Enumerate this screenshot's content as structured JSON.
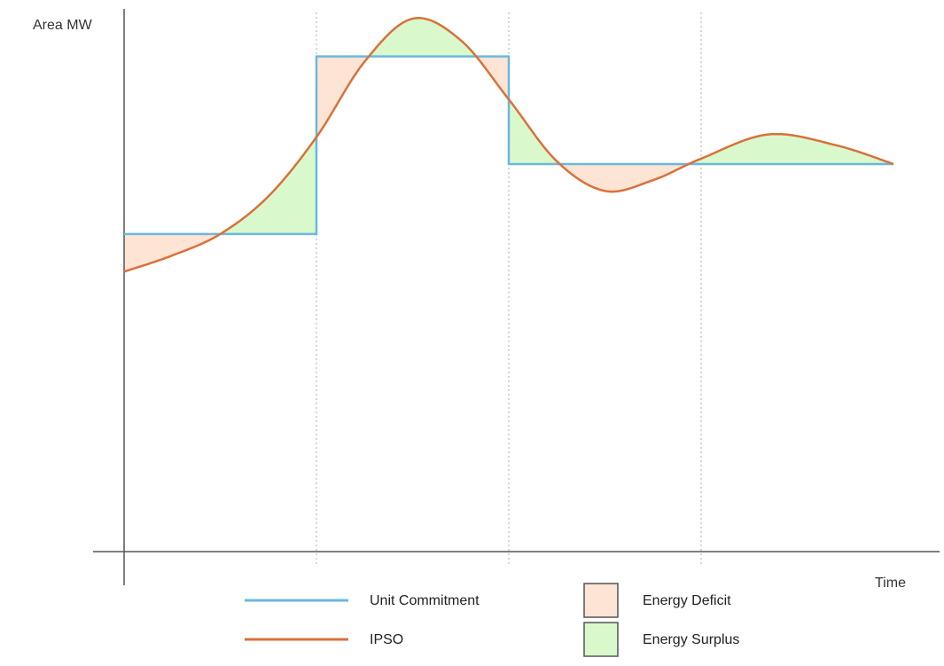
{
  "chart_data": {
    "type": "line",
    "ylabel": "Area MW",
    "xlabel": "Time",
    "xlim": [
      0,
      4
    ],
    "ylim": [
      0,
      100
    ],
    "interval_boundaries": [
      1,
      2,
      3
    ],
    "series": [
      {
        "name": "Unit Commitment",
        "kind": "step",
        "color": "#6ab8e0",
        "steps": [
          {
            "x_start": 0,
            "x_end": 1,
            "y": 59
          },
          {
            "x_start": 1,
            "x_end": 2,
            "y": 92
          },
          {
            "x_start": 2,
            "x_end": 4,
            "y": 72
          }
        ]
      },
      {
        "name": "IPSO",
        "kind": "smooth",
        "color": "#d9713a",
        "points": [
          {
            "x": 0,
            "y": 52
          },
          {
            "x": 0.25,
            "y": 55
          },
          {
            "x": 0.5,
            "y": 59
          },
          {
            "x": 0.75,
            "y": 66
          },
          {
            "x": 1.0,
            "y": 77
          },
          {
            "x": 1.25,
            "y": 91
          },
          {
            "x": 1.5,
            "y": 99
          },
          {
            "x": 1.75,
            "y": 95
          },
          {
            "x": 2.0,
            "y": 84
          },
          {
            "x": 2.25,
            "y": 72.5
          },
          {
            "x": 2.5,
            "y": 67
          },
          {
            "x": 2.75,
            "y": 69
          },
          {
            "x": 3.0,
            "y": 73
          },
          {
            "x": 3.35,
            "y": 77.5
          },
          {
            "x": 3.7,
            "y": 75.5
          },
          {
            "x": 4.0,
            "y": 72
          }
        ]
      }
    ],
    "legend": {
      "placement": "bottom",
      "entries": [
        {
          "label": "Unit Commitment",
          "kind": "line",
          "color": "#6ab8e0"
        },
        {
          "label": "IPSO",
          "kind": "line",
          "color": "#d9713a"
        },
        {
          "label": "Energy Deficit",
          "kind": "swatch",
          "color": "#fde4d4"
        },
        {
          "label": "Energy Surplus",
          "kind": "swatch",
          "color": "#d9f9cc"
        }
      ]
    },
    "fills": {
      "deficit_color": "#fde4d4",
      "surplus_color": "#d9f9cc"
    },
    "grid": false
  }
}
